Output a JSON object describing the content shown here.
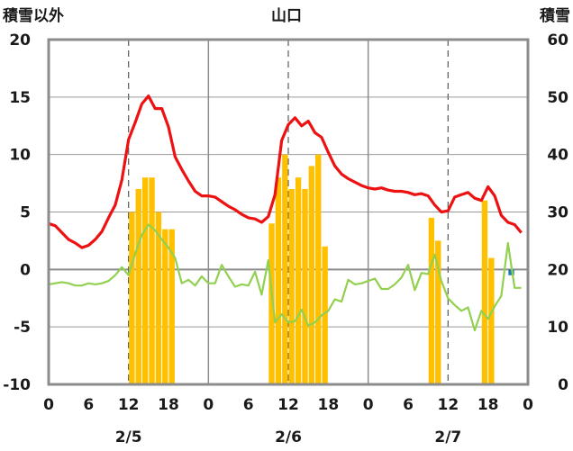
{
  "chart_data": {
    "type": "line",
    "title": "山口",
    "left_axis_label": "積雪以外",
    "right_axis_label": "積雪",
    "left_ylim": [
      -10,
      20
    ],
    "left_yticks": [
      "20",
      "15",
      "10",
      "5",
      "0",
      "-5",
      "-10"
    ],
    "right_ylim": [
      0,
      60
    ],
    "right_yticks": [
      "60",
      "50",
      "40",
      "30",
      "20",
      "10",
      "0"
    ],
    "xlim": [
      0,
      71
    ],
    "x_ticks": [
      {
        "x": 0,
        "label": "0"
      },
      {
        "x": 6,
        "label": "6"
      },
      {
        "x": 12,
        "label": "12"
      },
      {
        "x": 18,
        "label": "18"
      },
      {
        "x": 24,
        "label": "0"
      },
      {
        "x": 30,
        "label": "6"
      },
      {
        "x": 36,
        "label": "12"
      },
      {
        "x": 42,
        "label": "18"
      },
      {
        "x": 48,
        "label": "0"
      },
      {
        "x": 54,
        "label": "6"
      },
      {
        "x": 60,
        "label": "12"
      },
      {
        "x": 66,
        "label": "18"
      },
      {
        "x": 72,
        "label": "0"
      }
    ],
    "date_labels": [
      {
        "x": 12,
        "label": "2/5"
      },
      {
        "x": 36,
        "label": "2/6"
      },
      {
        "x": 60,
        "label": "2/7"
      }
    ],
    "day_dividers": [
      24,
      48
    ],
    "noon_lines": [
      12,
      36,
      60
    ],
    "grid": true,
    "series": [
      {
        "color": "#ee1111",
        "type": "line",
        "axis": "left",
        "values": [
          4.0,
          3.8,
          3.2,
          2.6,
          2.3,
          1.9,
          2.1,
          2.6,
          3.3,
          4.5,
          5.6,
          7.8,
          11.3,
          12.8,
          14.4,
          15.1,
          14.0,
          14.0,
          12.4,
          9.8,
          8.7,
          7.7,
          6.8,
          6.4,
          6.4,
          6.3,
          5.9,
          5.5,
          5.2,
          4.8,
          4.5,
          4.4,
          4.1,
          4.6,
          6.5,
          11.2,
          12.6,
          13.2,
          12.5,
          12.9,
          11.9,
          11.5,
          10.2,
          9.0,
          8.3,
          7.9,
          7.6,
          7.3,
          7.1,
          7.0,
          7.1,
          6.9,
          6.8,
          6.8,
          6.7,
          6.5,
          6.6,
          6.4,
          5.6,
          5.0,
          5.1,
          6.3,
          6.5,
          6.7,
          6.2,
          6.0,
          7.2,
          6.4,
          4.7,
          4.1,
          3.9,
          3.2
        ]
      },
      {
        "color": "#92d050",
        "type": "line",
        "axis": "left",
        "values": [
          -1.3,
          -1.2,
          -1.1,
          -1.2,
          -1.4,
          -1.4,
          -1.2,
          -1.3,
          -1.2,
          -1.0,
          -0.5,
          0.2,
          -0.5,
          1.4,
          3.0,
          3.9,
          3.4,
          2.6,
          1.9,
          1.0,
          -1.2,
          -0.9,
          -1.4,
          -0.6,
          -1.2,
          -1.2,
          0.4,
          -0.6,
          -1.5,
          -1.3,
          -1.4,
          -0.2,
          -2.2,
          0.8,
          -4.6,
          -3.9,
          -4.6,
          -4.5,
          -3.5,
          -4.9,
          -4.6,
          -4.0,
          -3.6,
          -2.6,
          -2.8,
          -0.9,
          -1.3,
          -1.2,
          -1.0,
          -0.8,
          -1.7,
          -1.7,
          -1.3,
          -0.7,
          0.4,
          -1.8,
          -0.3,
          -0.4,
          1.3,
          -1.0,
          -2.5,
          -3.1,
          -3.6,
          -3.3,
          -5.3,
          -3.6,
          -4.3,
          -3.2,
          -2.3,
          2.3,
          -1.6,
          -1.6
        ]
      },
      {
        "color": "#7030a0",
        "type": "line",
        "axis": "left",
        "values": [
          -10,
          -10
        ]
      },
      {
        "color": "#ffc000",
        "type": "bar",
        "axis": "right",
        "values": [
          0,
          0,
          0,
          0,
          0,
          0,
          0,
          0,
          0,
          0,
          0,
          0,
          30,
          34,
          36,
          36,
          30,
          27,
          27,
          0,
          0,
          0,
          0,
          0,
          0,
          0,
          0,
          0,
          0,
          0,
          0,
          0,
          0,
          28,
          36,
          40,
          34,
          36,
          34,
          38,
          40,
          24,
          0,
          0,
          0,
          0,
          0,
          0,
          0,
          0,
          0,
          0,
          0,
          0,
          0,
          0,
          0,
          29,
          25,
          0,
          0,
          0,
          0,
          0,
          0,
          32,
          22,
          0,
          0,
          0,
          0,
          0
        ]
      },
      {
        "color": "#1f77b4",
        "type": "bar",
        "axis": "left",
        "values": [
          0,
          0,
          0,
          0,
          0,
          0,
          0,
          0,
          0,
          0,
          0,
          0,
          0,
          0,
          0,
          0,
          0,
          0,
          0,
          0,
          0,
          0,
          0,
          0,
          0,
          0,
          0,
          0,
          0,
          0,
          0,
          0,
          0,
          0,
          0,
          0,
          0,
          0,
          0,
          0,
          0,
          0,
          0,
          0,
          0,
          0,
          0,
          0,
          0,
          0,
          0,
          0,
          0,
          0,
          0,
          0,
          0,
          0,
          0,
          0,
          0,
          0,
          0,
          0,
          0,
          0,
          0,
          0,
          0,
          -0.5,
          0,
          0
        ]
      }
    ]
  }
}
